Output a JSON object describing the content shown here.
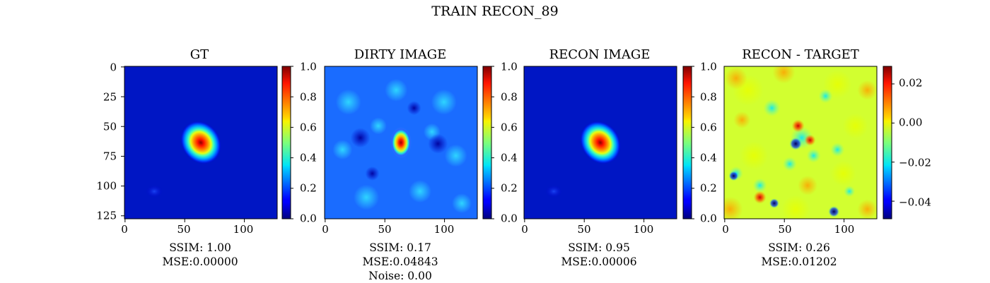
{
  "figure": {
    "title": "TRAIN RECON_89"
  },
  "colormap": "jet",
  "chart_data": [
    {
      "type": "heatmap",
      "title": "GT",
      "image_size": [
        128,
        128
      ],
      "x_ticks": [
        0,
        50,
        100
      ],
      "y_ticks": [
        0,
        25,
        50,
        75,
        100,
        125
      ],
      "colorbar": {
        "range": [
          0.0,
          1.0
        ],
        "ticks": [
          "0.0",
          "0.2",
          "0.4",
          "0.6",
          "0.8",
          "1.0"
        ]
      },
      "caption": [
        "SSIM: 1.00",
        "MSE:0.00000"
      ],
      "features": {
        "source_center": [
          64,
          64
        ],
        "source_peak": 1.0,
        "background": 0.1,
        "faint_blob": [
          25,
          105,
          0.22
        ]
      }
    },
    {
      "type": "heatmap",
      "title": "DIRTY IMAGE",
      "image_size": [
        128,
        128
      ],
      "x_ticks": [
        0,
        50,
        100
      ],
      "colorbar": {
        "range": [
          0.0,
          1.0
        ],
        "ticks": [
          "0.0",
          "0.2",
          "0.4",
          "0.6",
          "0.8",
          "1.0"
        ]
      },
      "caption": [
        "SSIM: 0.17",
        "MSE:0.04843",
        "Noise: 0.00"
      ],
      "features": {
        "source_center": [
          64,
          64
        ],
        "source_peak": 1.0,
        "background": 0.28
      }
    },
    {
      "type": "heatmap",
      "title": "RECON IMAGE",
      "image_size": [
        128,
        128
      ],
      "x_ticks": [
        0,
        50,
        100
      ],
      "colorbar": {
        "range": [
          0.0,
          1.0
        ],
        "ticks": [
          "0.0",
          "0.2",
          "0.4",
          "0.6",
          "0.8",
          "1.0"
        ]
      },
      "caption": [
        "SSIM: 0.95",
        "MSE:0.00006"
      ],
      "features": {
        "source_center": [
          64,
          64
        ],
        "source_peak": 0.95,
        "background": 0.1,
        "faint_blob": [
          25,
          105,
          0.2
        ]
      }
    },
    {
      "type": "heatmap",
      "title": "RECON - TARGET",
      "image_size": [
        128,
        128
      ],
      "x_ticks": [
        0,
        50,
        100
      ],
      "colorbar": {
        "range": [
          -0.049,
          0.029
        ],
        "ticks": [
          "0.02",
          "0.00",
          "−0.02",
          "−0.04"
        ],
        "tick_values": [
          0.02,
          0.0,
          -0.02,
          -0.04
        ]
      },
      "caption": [
        "SSIM: 0.26",
        "MSE:0.01202"
      ],
      "features": {
        "residual_hotspot": [
          30,
          110,
          0.025
        ],
        "residual_low": [
          92,
          122,
          -0.045
        ]
      }
    }
  ]
}
